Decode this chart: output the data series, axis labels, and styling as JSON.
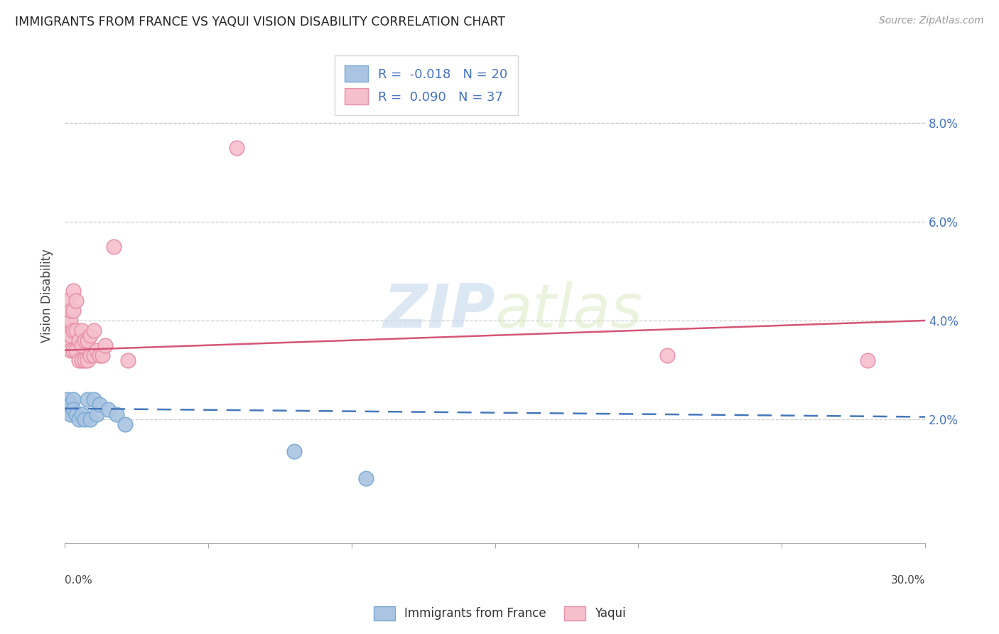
{
  "title": "IMMIGRANTS FROM FRANCE VS YAQUI VISION DISABILITY CORRELATION CHART",
  "source": "Source: ZipAtlas.com",
  "ylabel": "Vision Disability",
  "xlim": [
    0.0,
    0.3
  ],
  "ylim": [
    -0.005,
    0.095
  ],
  "france_color": "#aac4e2",
  "france_edge": "#7aaad4",
  "yaqui_color": "#f5bfcc",
  "yaqui_edge": "#e890a8",
  "france_R": "-0.018",
  "france_N": "20",
  "yaqui_R": "0.090",
  "yaqui_N": "37",
  "france_x": [
    0.001,
    0.001,
    0.002,
    0.002,
    0.003,
    0.003,
    0.004,
    0.005,
    0.006,
    0.007,
    0.008,
    0.009,
    0.01,
    0.011,
    0.012,
    0.015,
    0.018,
    0.021,
    0.08,
    0.105
  ],
  "france_y": [
    0.024,
    0.022,
    0.021,
    0.023,
    0.024,
    0.022,
    0.021,
    0.02,
    0.021,
    0.02,
    0.024,
    0.02,
    0.024,
    0.021,
    0.023,
    0.022,
    0.021,
    0.019,
    0.0135,
    0.008
  ],
  "yaqui_x": [
    0.001,
    0.001,
    0.001,
    0.001,
    0.002,
    0.002,
    0.002,
    0.002,
    0.003,
    0.003,
    0.003,
    0.003,
    0.004,
    0.004,
    0.004,
    0.005,
    0.005,
    0.006,
    0.006,
    0.006,
    0.007,
    0.007,
    0.008,
    0.008,
    0.009,
    0.009,
    0.01,
    0.01,
    0.011,
    0.012,
    0.013,
    0.014,
    0.017,
    0.022,
    0.06,
    0.21,
    0.28
  ],
  "yaqui_y": [
    0.036,
    0.038,
    0.04,
    0.044,
    0.034,
    0.037,
    0.04,
    0.042,
    0.034,
    0.038,
    0.042,
    0.046,
    0.034,
    0.038,
    0.044,
    0.032,
    0.036,
    0.032,
    0.035,
    0.038,
    0.032,
    0.036,
    0.032,
    0.036,
    0.033,
    0.037,
    0.033,
    0.038,
    0.034,
    0.033,
    0.033,
    0.035,
    0.055,
    0.032,
    0.075,
    0.033,
    0.032
  ],
  "watermark_zip": "ZIP",
  "watermark_atlas": "atlas",
  "france_line_x": [
    0.0,
    0.3
  ],
  "france_line_y": [
    0.0222,
    0.0205
  ],
  "yaqui_line_x": [
    0.0,
    0.3
  ],
  "yaqui_line_y": [
    0.034,
    0.04
  ],
  "ytick_vals": [
    0.02,
    0.04,
    0.06,
    0.08
  ],
  "ytick_labels": [
    "2.0%",
    "4.0%",
    "6.0%",
    "8.0%"
  ],
  "legend_color_R": "#4472c4",
  "legend_color_N": "#4472c4",
  "legend_text_color": "#333333"
}
